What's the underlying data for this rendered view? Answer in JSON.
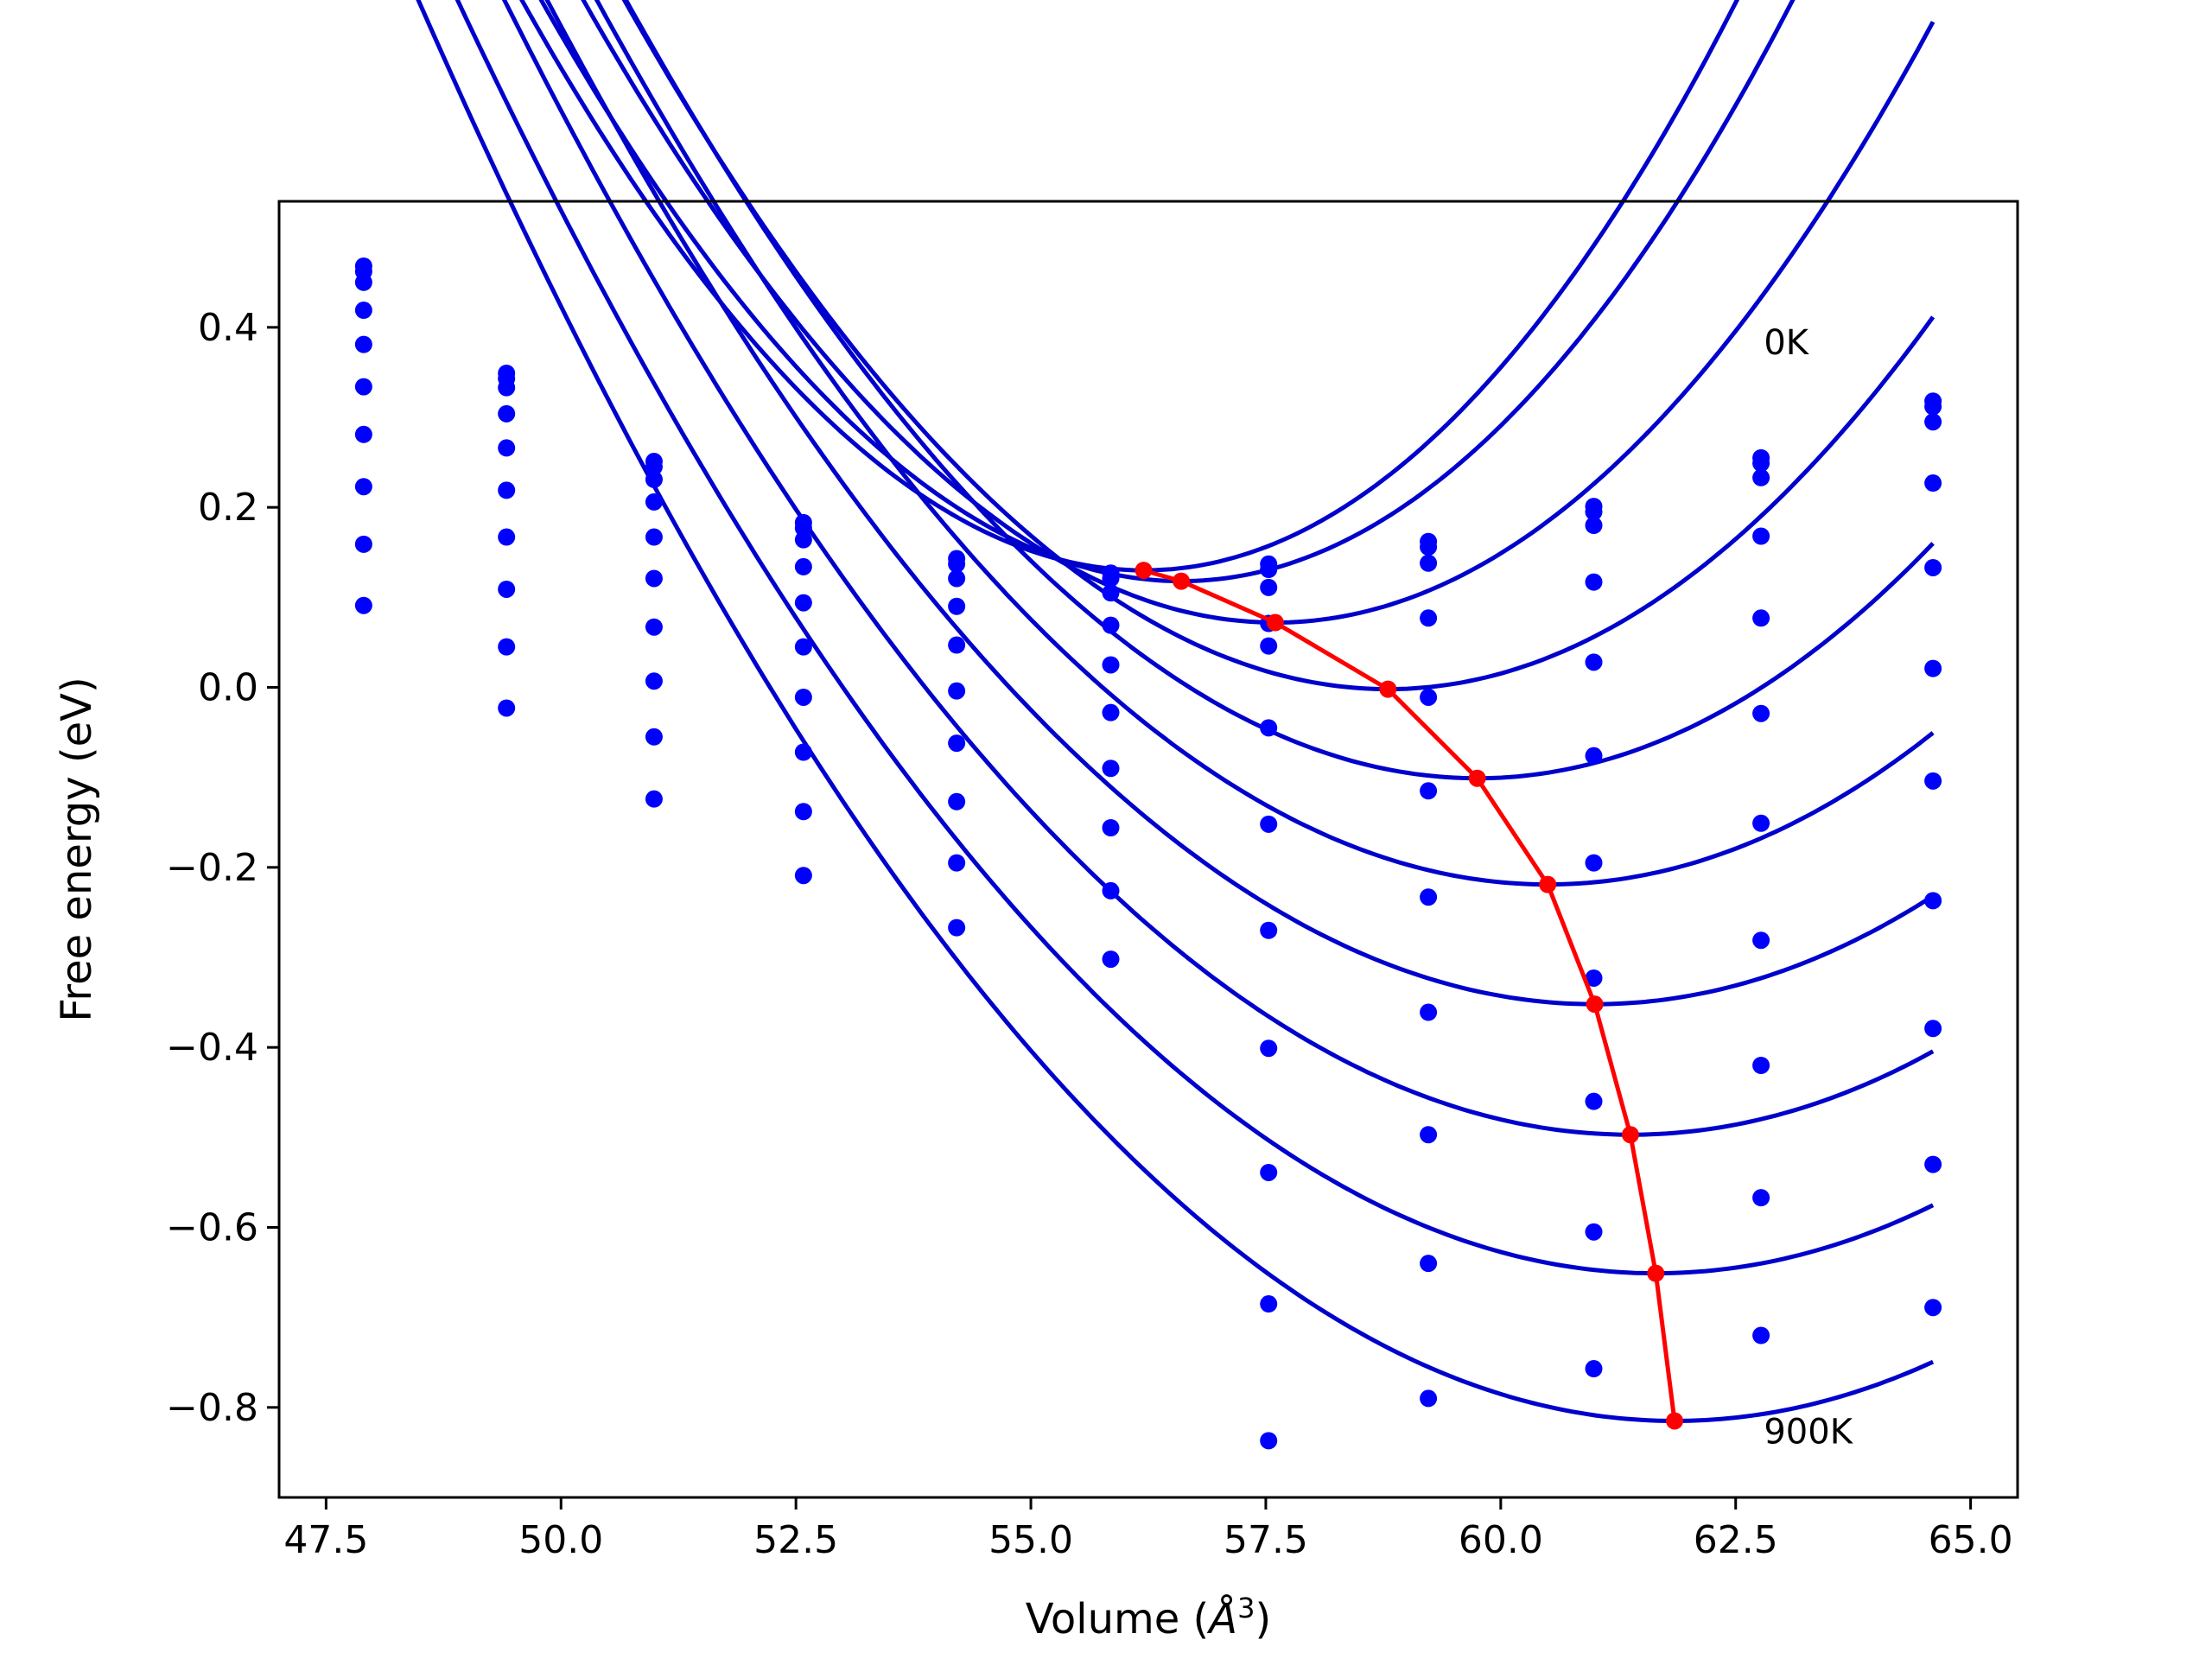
{
  "chart_data": {
    "type": "line",
    "xlabel": "Volume (",
    "xlabel_unit": "Å",
    "xlabel_exp": "3",
    "xlabel_close": ")",
    "ylabel": "Free energy (eV)",
    "xlim": [
      47.0,
      65.5
    ],
    "ylim": [
      -0.9,
      0.54
    ],
    "xticks": [
      47.5,
      50.0,
      52.5,
      55.0,
      57.5,
      60.0,
      62.5,
      65.0
    ],
    "xtick_labels": [
      "47.5",
      "50.0",
      "52.5",
      "55.0",
      "57.5",
      "60.0",
      "62.5",
      "65.0"
    ],
    "yticks": [
      -0.8,
      -0.6,
      -0.4,
      -0.2,
      0.0,
      0.2,
      0.4
    ],
    "ytick_labels": [
      "−0.8",
      "−0.6",
      "−0.4",
      "−0.2",
      "0.0",
      "0.2",
      "0.4"
    ],
    "grid": false,
    "annotations": [
      {
        "text": "0K",
        "x": 62.8,
        "y": 0.37
      },
      {
        "text": "900K",
        "x": 62.8,
        "y": -0.84
      }
    ],
    "colors": {
      "fit": "#0000cc",
      "points": "#0000ff",
      "minima": "#ff0000"
    },
    "volumes": [
      47.9,
      49.42,
      50.99,
      52.58,
      54.21,
      55.85,
      57.53,
      59.23,
      60.99,
      62.77,
      64.6
    ],
    "series": [
      {
        "values": [
          0.468,
          0.349,
          0.251,
          0.183,
          0.143,
          0.127,
          0.137,
          0.162,
          0.201,
          0.255,
          0.318
        ]
      },
      {
        "values": [
          0.462,
          0.343,
          0.245,
          0.177,
          0.137,
          0.121,
          0.131,
          0.156,
          0.195,
          0.249,
          0.312
        ]
      },
      {
        "values": [
          0.45,
          0.333,
          0.231,
          0.164,
          0.121,
          0.105,
          0.111,
          0.138,
          0.18,
          0.233,
          0.295
        ]
      },
      {
        "values": [
          0.419,
          0.304,
          0.206,
          0.134,
          0.09,
          0.069,
          0.071,
          0.077,
          0.117,
          0.168,
          0.227
        ]
      },
      {
        "values": [
          0.381,
          0.266,
          0.167,
          0.094,
          0.047,
          0.025,
          0.046,
          -0.011,
          0.028,
          0.077,
          0.133
        ]
      },
      {
        "values": [
          0.334,
          0.219,
          0.121,
          0.045,
          -0.004,
          -0.028,
          -0.045,
          -0.115,
          -0.076,
          -0.029,
          0.021
        ]
      },
      {
        "values": [
          0.281,
          0.167,
          0.067,
          -0.011,
          -0.062,
          -0.09,
          -0.152,
          -0.233,
          -0.195,
          -0.151,
          -0.104
        ]
      },
      {
        "values": [
          0.223,
          0.109,
          0.007,
          -0.072,
          -0.127,
          -0.156,
          -0.27,
          -0.361,
          -0.323,
          -0.281,
          -0.237
        ]
      },
      {
        "values": [
          0.159,
          0.045,
          -0.055,
          -0.138,
          -0.195,
          -0.226,
          -0.401,
          -0.497,
          -0.46,
          -0.42,
          -0.379
        ]
      },
      {
        "values": [
          0.091,
          -0.023,
          -0.124,
          -0.209,
          -0.267,
          -0.302,
          -0.539,
          -0.64,
          -0.605,
          -0.567,
          -0.53
        ]
      },
      {
        "values": [
          null,
          null,
          null,
          null,
          null,
          null,
          -0.685,
          -0.79,
          -0.757,
          -0.72,
          -0.689
        ]
      },
      {
        "values": [
          null,
          null,
          null,
          null,
          null,
          null,
          -0.837,
          null,
          null,
          null,
          null
        ]
      }
    ],
    "fit_curves": [
      {
        "vmin": 56.2,
        "emin": 0.13,
        "a": 0.0152,
        "b": 0.00011
      },
      {
        "vmin": 56.6,
        "emin": 0.118,
        "a": 0.0146,
        "b": 0.0001
      },
      {
        "vmin": 57.6,
        "emin": 0.072,
        "a": 0.0132,
        "b": 6e-05
      },
      {
        "vmin": 58.8,
        "emin": -0.002,
        "a": 0.012,
        "b": 5e-05
      },
      {
        "vmin": 59.75,
        "emin": -0.101,
        "a": 0.0109,
        "b": 4e-05
      },
      {
        "vmin": 60.5,
        "emin": -0.219,
        "a": 0.0099,
        "b": 3e-05
      },
      {
        "vmin": 61.0,
        "emin": -0.352,
        "a": 0.0092,
        "b": 2e-05
      },
      {
        "vmin": 61.38,
        "emin": -0.497,
        "a": 0.0089,
        "b": 1e-05
      },
      {
        "vmin": 61.65,
        "emin": -0.651,
        "a": 0.0087,
        "b": 0.0
      },
      {
        "vmin": 61.85,
        "emin": -0.815,
        "a": 0.0087,
        "b": -1e-05
      }
    ],
    "minima": {
      "x": [
        56.2,
        56.6,
        57.6,
        58.8,
        59.75,
        60.5,
        61.0,
        61.38,
        61.65,
        61.85
      ],
      "y": [
        0.13,
        0.118,
        0.072,
        -0.002,
        -0.101,
        -0.219,
        -0.352,
        -0.497,
        -0.651,
        -0.815
      ]
    }
  }
}
